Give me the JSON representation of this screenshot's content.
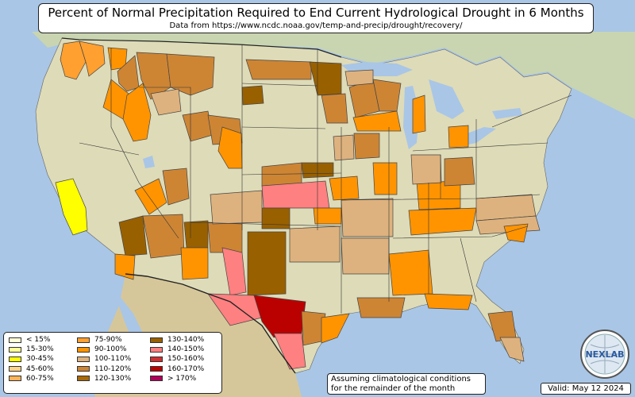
{
  "title": "Percent of Normal Precipitation Required to End Current Hydrological Drought in 6 Months",
  "subtitle": "Data from https://www.ncdc.noaa.gov/temp-and-precip/drought/recovery/",
  "note_lines": [
    "Assuming climatological conditions",
    "for the remainder of the month"
  ],
  "valid": "Valid: May 12 2024",
  "logo_text": "NEXLAB",
  "legend": [
    {
      "label": "< 15%",
      "color": "#ffffd8"
    },
    {
      "label": "15-30%",
      "color": "#ffff99"
    },
    {
      "label": "30-45%",
      "color": "#ffff00"
    },
    {
      "label": "45-60%",
      "color": "#ffd48a"
    },
    {
      "label": "60-75%",
      "color": "#ffb45a"
    },
    {
      "label": "75-90%",
      "color": "#ffa030"
    },
    {
      "label": "90-100%",
      "color": "#ff9400"
    },
    {
      "label": "100-110%",
      "color": "#deb27e"
    },
    {
      "label": "110-120%",
      "color": "#cd8534"
    },
    {
      "label": "120-130%",
      "color": "#a86a08"
    },
    {
      "label": "130-140%",
      "color": "#996000"
    },
    {
      "label": "140-150%",
      "color": "#ff8080"
    },
    {
      "label": "150-160%",
      "color": "#d03030"
    },
    {
      "label": "160-170%",
      "color": "#bb0000"
    },
    {
      "label": "> 170%",
      "color": "#b0005a"
    }
  ],
  "colors": {
    "ocean": "#a9c6e6",
    "land": "#dedbb8",
    "land_green": "#bfd2a8",
    "mountain": "#c9b790",
    "mexico": "#d6c79a",
    "border": "#333333"
  }
}
